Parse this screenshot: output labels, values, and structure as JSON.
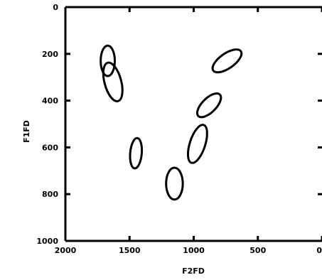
{
  "chart_data": {
    "type": "scatter",
    "xlabel": "F2FD",
    "ylabel": "F1FD",
    "xlim": [
      2000,
      0
    ],
    "ylim": [
      1000,
      0
    ],
    "x_ticks": [
      2000,
      1500,
      1000,
      500,
      0
    ],
    "x_tick_labels": [
      "2000",
      "1500",
      "1000",
      "500",
      "0"
    ],
    "y_ticks": [
      0,
      200,
      400,
      600,
      800,
      1000
    ],
    "y_tick_labels": [
      "0",
      "200",
      "400",
      "600",
      "800",
      "1000"
    ],
    "grid": false,
    "series": [
      {
        "marker": "ellipse",
        "points": [
          {
            "x": 1670,
            "y": 230,
            "rx_data": 55,
            "ry_data": 65,
            "angle": 0
          },
          {
            "x": 1630,
            "y": 320,
            "rx_data": 65,
            "ry_data": 85,
            "angle": -15
          },
          {
            "x": 1450,
            "y": 625,
            "rx_data": 45,
            "ry_data": 65,
            "angle": 5
          },
          {
            "x": 1150,
            "y": 755,
            "rx_data": 65,
            "ry_data": 68,
            "angle": 0
          },
          {
            "x": 970,
            "y": 585,
            "rx_data": 60,
            "ry_data": 85,
            "angle": 18
          },
          {
            "x": 880,
            "y": 420,
            "rx_data": 55,
            "ry_data": 65,
            "angle": 45
          },
          {
            "x": 740,
            "y": 230,
            "rx_data": 58,
            "ry_data": 72,
            "angle": 55
          }
        ]
      }
    ]
  }
}
